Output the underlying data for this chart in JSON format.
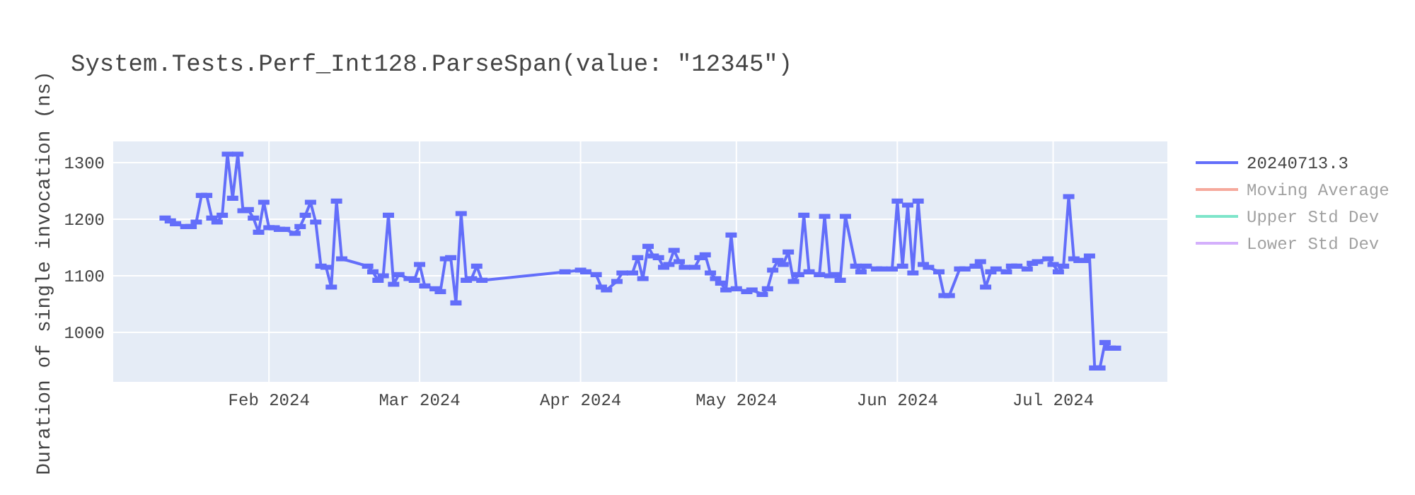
{
  "chart_data": {
    "type": "line",
    "title": "System.Tests.Perf_Int128.ParseSpan(value: \"12345\")",
    "ylabel": "Duration of single invocation (ns)",
    "x": [
      "2024-01-12",
      "2024-01-13",
      "2024-01-14",
      "2024-01-16",
      "2024-01-17",
      "2024-01-18",
      "2024-01-19",
      "2024-01-20",
      "2024-01-21",
      "2024-01-22",
      "2024-01-23",
      "2024-01-24",
      "2024-01-25",
      "2024-01-26",
      "2024-01-27",
      "2024-01-28",
      "2024-01-29",
      "2024-01-30",
      "2024-01-31",
      "2024-02-01",
      "2024-02-02",
      "2024-02-03",
      "2024-02-04",
      "2024-02-06",
      "2024-02-07",
      "2024-02-08",
      "2024-02-09",
      "2024-02-10",
      "2024-02-11",
      "2024-02-12",
      "2024-02-13",
      "2024-02-14",
      "2024-02-15",
      "2024-02-20",
      "2024-02-21",
      "2024-02-22",
      "2024-02-23",
      "2024-02-24",
      "2024-02-25",
      "2024-02-26",
      "2024-02-28",
      "2024-02-29",
      "2024-03-01",
      "2024-03-02",
      "2024-03-04",
      "2024-03-05",
      "2024-03-06",
      "2024-03-07",
      "2024-03-08",
      "2024-03-09",
      "2024-03-10",
      "2024-03-11",
      "2024-03-12",
      "2024-03-13",
      "2024-03-29",
      "2024-04-01",
      "2024-04-02",
      "2024-04-04",
      "2024-04-05",
      "2024-04-06",
      "2024-04-08",
      "2024-04-09",
      "2024-04-11",
      "2024-04-12",
      "2024-04-13",
      "2024-04-14",
      "2024-04-15",
      "2024-04-16",
      "2024-04-17",
      "2024-04-18",
      "2024-04-19",
      "2024-04-20",
      "2024-04-21",
      "2024-04-23",
      "2024-04-24",
      "2024-04-25",
      "2024-04-26",
      "2024-04-27",
      "2024-04-28",
      "2024-04-29",
      "2024-04-30",
      "2024-05-01",
      "2024-05-03",
      "2024-05-04",
      "2024-05-06",
      "2024-05-07",
      "2024-05-08",
      "2024-05-09",
      "2024-05-10",
      "2024-05-11",
      "2024-05-12",
      "2024-05-13",
      "2024-05-14",
      "2024-05-15",
      "2024-05-17",
      "2024-05-18",
      "2024-05-19",
      "2024-05-20",
      "2024-05-21",
      "2024-05-22",
      "2024-05-24",
      "2024-05-25",
      "2024-05-26",
      "2024-05-28",
      "2024-05-29",
      "2024-05-31",
      "2024-06-01",
      "2024-06-02",
      "2024-06-03",
      "2024-06-04",
      "2024-06-05",
      "2024-06-06",
      "2024-06-07",
      "2024-06-09",
      "2024-06-10",
      "2024-06-11",
      "2024-06-13",
      "2024-06-14",
      "2024-06-16",
      "2024-06-17",
      "2024-06-18",
      "2024-06-19",
      "2024-06-20",
      "2024-06-22",
      "2024-06-23",
      "2024-06-24",
      "2024-06-26",
      "2024-06-27",
      "2024-06-28",
      "2024-06-30",
      "2024-07-01",
      "2024-07-02",
      "2024-07-03",
      "2024-07-04",
      "2024-07-05",
      "2024-07-06",
      "2024-07-07",
      "2024-07-08",
      "2024-07-09",
      "2024-07-10",
      "2024-07-11",
      "2024-07-12",
      "2024-07-13"
    ],
    "series": [
      {
        "name": "20240713.3",
        "color": "#636efa",
        "values": [
          1202,
          1197,
          1192,
          1187,
          1187,
          1195,
          1242,
          1242,
          1202,
          1195,
          1207,
          1315,
          1237,
          1315,
          1215,
          1217,
          1202,
          1177,
          1230,
          1185,
          1185,
          1182,
          1182,
          1175,
          1187,
          1207,
          1230,
          1195,
          1117,
          1115,
          1080,
          1232,
          1130,
          1117,
          1107,
          1092,
          1100,
          1207,
          1085,
          1102,
          1095,
          1092,
          1120,
          1082,
          1077,
          1072,
          1130,
          1132,
          1052,
          1210,
          1092,
          1095,
          1117,
          1092,
          1107,
          1110,
          1107,
          1102,
          1080,
          1075,
          1090,
          1105,
          1105,
          1132,
          1095,
          1152,
          1135,
          1132,
          1115,
          1120,
          1145,
          1125,
          1115,
          1115,
          1132,
          1137,
          1105,
          1095,
          1087,
          1075,
          1172,
          1077,
          1072,
          1075,
          1067,
          1077,
          1110,
          1127,
          1120,
          1142,
          1090,
          1102,
          1207,
          1107,
          1102,
          1205,
          1100,
          1102,
          1092,
          1205,
          1117,
          1107,
          1117,
          1112,
          1112,
          1112,
          1232,
          1117,
          1225,
          1105,
          1232,
          1120,
          1115,
          1107,
          1065,
          1065,
          1112,
          1112,
          1117,
          1125,
          1080,
          1107,
          1112,
          1107,
          1117,
          1117,
          1112,
          1122,
          1125,
          1130,
          1120,
          1107,
          1117,
          1240,
          1130,
          1127,
          1127,
          1135,
          937,
          937,
          982,
          972,
          972
        ],
        "errors": [
          2,
          2,
          2,
          2,
          2,
          2,
          2,
          2,
          2,
          2,
          2,
          2,
          2,
          2,
          2,
          2,
          2,
          2,
          2,
          2,
          2,
          2,
          2,
          2,
          2,
          2,
          2,
          2,
          2,
          2,
          2,
          2,
          2,
          2,
          2,
          2,
          2,
          2,
          2,
          2,
          2,
          2,
          2,
          2,
          2,
          2,
          2,
          2,
          2,
          2,
          2,
          2,
          2,
          2,
          2,
          2,
          2,
          2,
          2,
          2,
          2,
          2,
          2,
          2,
          2,
          2,
          2,
          2,
          2,
          2,
          2,
          2,
          2,
          2,
          2,
          2,
          2,
          2,
          2,
          2,
          2,
          2,
          2,
          2,
          2,
          2,
          2,
          2,
          2,
          2,
          2,
          2,
          2,
          2,
          2,
          2,
          2,
          2,
          2,
          2,
          2,
          2,
          2,
          2,
          2,
          2,
          2,
          2,
          2,
          2,
          2,
          2,
          2,
          2,
          2,
          2,
          2,
          2,
          2,
          2,
          2,
          2,
          2,
          2,
          2,
          2,
          2,
          2,
          2,
          2,
          2,
          2,
          2,
          2,
          2,
          2,
          2,
          2,
          2,
          2,
          2,
          2,
          2
        ]
      },
      {
        "name": "Moving Average",
        "color": "#ef553b",
        "values": [
          null,
          null,
          null,
          null,
          null,
          null,
          null,
          null,
          null,
          null,
          null,
          null,
          null,
          null,
          null,
          null,
          null,
          null,
          null,
          null,
          null,
          null,
          null,
          null,
          null,
          null,
          null,
          null,
          null,
          null,
          null,
          null,
          null,
          null,
          null,
          null,
          null,
          null,
          null,
          null,
          null,
          null,
          null,
          null,
          null,
          null,
          null,
          null,
          null,
          null,
          null,
          null,
          null,
          null,
          null,
          null,
          null,
          null,
          null,
          null,
          null,
          null,
          null,
          null,
          null,
          null,
          null,
          null,
          null,
          null,
          null,
          null,
          null,
          null,
          null,
          null,
          null,
          null,
          null,
          null,
          null,
          null,
          null,
          null,
          null,
          null,
          null,
          null,
          null,
          null,
          null,
          null,
          null,
          null,
          null,
          null,
          null,
          null,
          null,
          null,
          null,
          null,
          null,
          null,
          null,
          null,
          null,
          null,
          null,
          null,
          null,
          null,
          null,
          null,
          null,
          null,
          null,
          null,
          null,
          null,
          null,
          null,
          null,
          null,
          null,
          null,
          null,
          null,
          null,
          null,
          null,
          null,
          null,
          null,
          null,
          null,
          null,
          null,
          null,
          null,
          null,
          null,
          null
        ]
      },
      {
        "name": "Upper Std Dev",
        "color": "#00cc96",
        "values": [
          null,
          null,
          null,
          null,
          null,
          null,
          null,
          null,
          null,
          null,
          null,
          null,
          null,
          null,
          null,
          null,
          null,
          null,
          null,
          null,
          null,
          null,
          null,
          null,
          null,
          null,
          null,
          null,
          null,
          null,
          null,
          null,
          null,
          null,
          null,
          null,
          null,
          null,
          null,
          null,
          null,
          null,
          null,
          null,
          null,
          null,
          null,
          null,
          null,
          null,
          null,
          null,
          null,
          null,
          null,
          null,
          null,
          null,
          null,
          null,
          null,
          null,
          null,
          null,
          null,
          null,
          null,
          null,
          null,
          null,
          null,
          null,
          null,
          null,
          null,
          null,
          null,
          null,
          null,
          null,
          null,
          null,
          null,
          null,
          null,
          null,
          null,
          null,
          null,
          null,
          null,
          null,
          null,
          null,
          null,
          null,
          null,
          null,
          null,
          null,
          null,
          null,
          null,
          null,
          null,
          null,
          null,
          null,
          null,
          null,
          null,
          null,
          null,
          null,
          null,
          null,
          null,
          null,
          null,
          null,
          null,
          null,
          null,
          null,
          null,
          null,
          null,
          null,
          null,
          null,
          null,
          null,
          null,
          null,
          null,
          null,
          null,
          null,
          null,
          null,
          null,
          null,
          null
        ]
      },
      {
        "name": "Lower Std Dev",
        "color": "#ab63fa",
        "values": [
          null,
          null,
          null,
          null,
          null,
          null,
          null,
          null,
          null,
          null,
          null,
          null,
          null,
          null,
          null,
          null,
          null,
          null,
          null,
          null,
          null,
          null,
          null,
          null,
          null,
          null,
          null,
          null,
          null,
          null,
          null,
          null,
          null,
          null,
          null,
          null,
          null,
          null,
          null,
          null,
          null,
          null,
          null,
          null,
          null,
          null,
          null,
          null,
          null,
          null,
          null,
          null,
          null,
          null,
          null,
          null,
          null,
          null,
          null,
          null,
          null,
          null,
          null,
          null,
          null,
          null,
          null,
          null,
          null,
          null,
          null,
          null,
          null,
          null,
          null,
          null,
          null,
          null,
          null,
          null,
          null,
          null,
          null,
          null,
          null,
          null,
          null,
          null,
          null,
          null,
          null,
          null,
          null,
          null,
          null,
          null,
          null,
          null,
          null,
          null,
          null,
          null,
          null,
          null,
          null,
          null,
          null,
          null,
          null,
          null,
          null,
          null,
          null,
          null,
          null,
          null,
          null,
          null,
          null,
          null,
          null,
          null,
          null,
          null,
          null,
          null,
          null,
          null,
          null,
          null,
          null,
          null,
          null,
          null,
          null,
          null,
          null,
          null,
          null,
          null,
          null,
          null,
          null
        ]
      }
    ],
    "xlim": [
      "2024-01-02",
      "2024-07-23"
    ],
    "xticks": [
      {
        "value": "2024-02-01",
        "label": "Feb 2024"
      },
      {
        "value": "2024-03-01",
        "label": "Mar 2024"
      },
      {
        "value": "2024-04-01",
        "label": "Apr 2024"
      },
      {
        "value": "2024-05-01",
        "label": "May 2024"
      },
      {
        "value": "2024-06-01",
        "label": "Jun 2024"
      },
      {
        "value": "2024-07-01",
        "label": "Jul 2024"
      }
    ],
    "ylim": [
      912.5,
      1337.5
    ],
    "yticks": [
      1000,
      1100,
      1200,
      1300
    ],
    "grid": true,
    "legend": "right",
    "line_style": "solid",
    "marker": "none"
  }
}
